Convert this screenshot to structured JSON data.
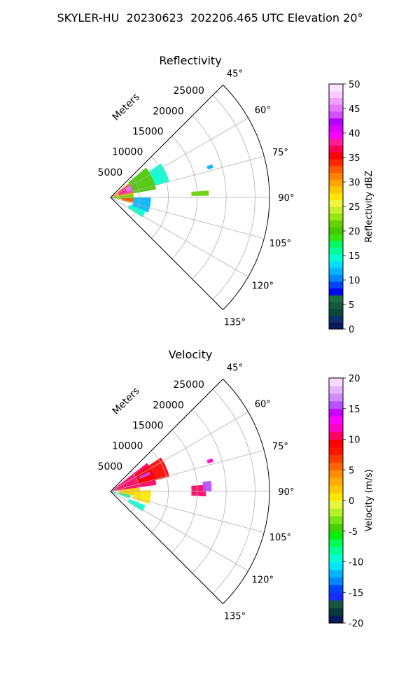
{
  "title": "SKYLER-HU  20230623  202206.465 UTC Elevation 20°",
  "panels": [
    {
      "id": "reflectivity",
      "title": "Reflectivity",
      "r_axis_label": "Meters",
      "r_ticks": [
        "5000",
        "10000",
        "15000",
        "20000",
        "25000"
      ],
      "theta_ticks": [
        "45°",
        "60°",
        "75°",
        "90°",
        "105°",
        "120°",
        "135°"
      ],
      "colorbar": {
        "label": "Reflectivity dBZ",
        "min": 0,
        "max": 50,
        "ticks": [
          "0",
          "5",
          "10",
          "15",
          "20",
          "25",
          "30",
          "35",
          "40",
          "45",
          "50"
        ],
        "colors": [
          "#0a1a5c",
          "#0c2f70",
          "#0a4a3a",
          "#145a3c",
          "#1a6e40",
          "#0000ff",
          "#0044ff",
          "#0088ff",
          "#00b4ff",
          "#00dcff",
          "#00ffd2",
          "#00ff96",
          "#00f564",
          "#32e60a",
          "#46c800",
          "#64d200",
          "#96e614",
          "#c8f028",
          "#f0f53c",
          "#ffe600",
          "#ffc800",
          "#ffa500",
          "#ff8200",
          "#ff5a00",
          "#ff2800",
          "#ff0000",
          "#ff0050",
          "#ff1e96",
          "#ff00ff",
          "#dc00ff",
          "#b400ff",
          "#d250ff",
          "#e678ff",
          "#f0a0ff",
          "#f8c8ff",
          "#ffe6ff"
        ]
      }
    },
    {
      "id": "velocity",
      "title": "Velocity",
      "r_axis_label": "Meters",
      "r_ticks": [
        "5000",
        "10000",
        "15000",
        "20000",
        "25000"
      ],
      "theta_ticks": [
        "45°",
        "60°",
        "75°",
        "90°",
        "105°",
        "120°",
        "135°"
      ],
      "colorbar": {
        "label": "Velocity (m/s)",
        "min": -20,
        "max": 20,
        "ticks": [
          "-20",
          "-15",
          "-10",
          "-5",
          "0",
          "5",
          "10",
          "15",
          "20"
        ],
        "colors": [
          "#0a1a5c",
          "#0a3a3a",
          "#145a3c",
          "#1a2aff",
          "#0044ff",
          "#0088ff",
          "#00b4ff",
          "#00e6ff",
          "#00ffd2",
          "#00ff96",
          "#00ff50",
          "#00f00a",
          "#46d200",
          "#78e614",
          "#b4f028",
          "#e6f53c",
          "#ffe600",
          "#ffc800",
          "#ffaa00",
          "#ff8c00",
          "#ff6400",
          "#ff3c00",
          "#ff1400",
          "#ff0000",
          "#ff0064",
          "#ff00c8",
          "#ff00ff",
          "#c800ff",
          "#b450ff",
          "#d28cff",
          "#e6b4ff",
          "#f5dcff"
        ]
      }
    }
  ],
  "chart_data": [
    {
      "type": "heatmap",
      "title": "Reflectivity",
      "subtype": "polar sector (PPI)",
      "theta_range_deg": [
        45,
        135
      ],
      "r_range_m": [
        0,
        27500
      ],
      "r_label": "Meters",
      "r_ticks": [
        5000,
        10000,
        15000,
        20000,
        25000
      ],
      "theta_ticks": [
        45,
        60,
        75,
        90,
        105,
        120,
        135
      ],
      "colorbar": {
        "label": "Reflectivity dBZ",
        "range": [
          0,
          50
        ]
      },
      "echo_regions": [
        {
          "theta": [
            52,
            82
          ],
          "r": [
            0,
            4000
          ],
          "value": 30
        },
        {
          "theta": [
            55,
            78
          ],
          "r": [
            1500,
            4000
          ],
          "value": 38
        },
        {
          "theta": [
            58,
            72
          ],
          "r": [
            3000,
            5000
          ],
          "value": 45
        },
        {
          "theta": [
            50,
            80
          ],
          "r": [
            4000,
            8000
          ],
          "value": 20
        },
        {
          "theta": [
            56,
            75
          ],
          "r": [
            8000,
            10500
          ],
          "value": 15
        },
        {
          "theta": [
            82,
            100
          ],
          "r": [
            0,
            4000
          ],
          "value": 22
        },
        {
          "theta": [
            92,
            103
          ],
          "r": [
            2000,
            4000
          ],
          "value": 32
        },
        {
          "theta": [
            90,
            112
          ],
          "r": [
            4000,
            7000
          ],
          "value": 12
        },
        {
          "theta": [
            111,
            122
          ],
          "r": [
            3500,
            6500
          ],
          "value": 14
        },
        {
          "theta": [
            86,
            89
          ],
          "r": [
            14000,
            17000
          ],
          "value": 22
        },
        {
          "theta": [
            72,
            74
          ],
          "r": [
            17500,
            18500
          ],
          "value": 12
        }
      ]
    },
    {
      "type": "heatmap",
      "title": "Velocity",
      "subtype": "polar sector (PPI)",
      "theta_range_deg": [
        45,
        135
      ],
      "r_range_m": [
        0,
        27500
      ],
      "r_label": "Meters",
      "r_ticks": [
        5000,
        10000,
        15000,
        20000,
        25000
      ],
      "theta_ticks": [
        45,
        60,
        75,
        90,
        105,
        120,
        135
      ],
      "colorbar": {
        "label": "Velocity (m/s)",
        "range": [
          -20,
          20
        ]
      },
      "echo_regions": [
        {
          "theta": [
            52,
            82
          ],
          "r": [
            0,
            8000
          ],
          "value": 10
        },
        {
          "theta": [
            56,
            76
          ],
          "r": [
            5000,
            10500
          ],
          "value": 9
        },
        {
          "theta": [
            63,
            67
          ],
          "r": [
            5500,
            7500
          ],
          "value": 15
        },
        {
          "theta": [
            82,
            100
          ],
          "r": [
            1500,
            5000
          ],
          "value": 2
        },
        {
          "theta": [
            100,
            110
          ],
          "r": [
            0,
            3500
          ],
          "value": -8
        },
        {
          "theta": [
            88,
            108
          ],
          "r": [
            4000,
            7000
          ],
          "value": 1
        },
        {
          "theta": [
            112,
            122
          ],
          "r": [
            3500,
            6500
          ],
          "value": -9
        },
        {
          "theta": [
            86,
            93
          ],
          "r": [
            14000,
            16500
          ],
          "value": 10
        },
        {
          "theta": [
            84,
            90
          ],
          "r": [
            16000,
            17500
          ],
          "value": 15
        },
        {
          "theta": [
            72,
            74
          ],
          "r": [
            17500,
            18500
          ],
          "value": 12
        }
      ]
    }
  ]
}
